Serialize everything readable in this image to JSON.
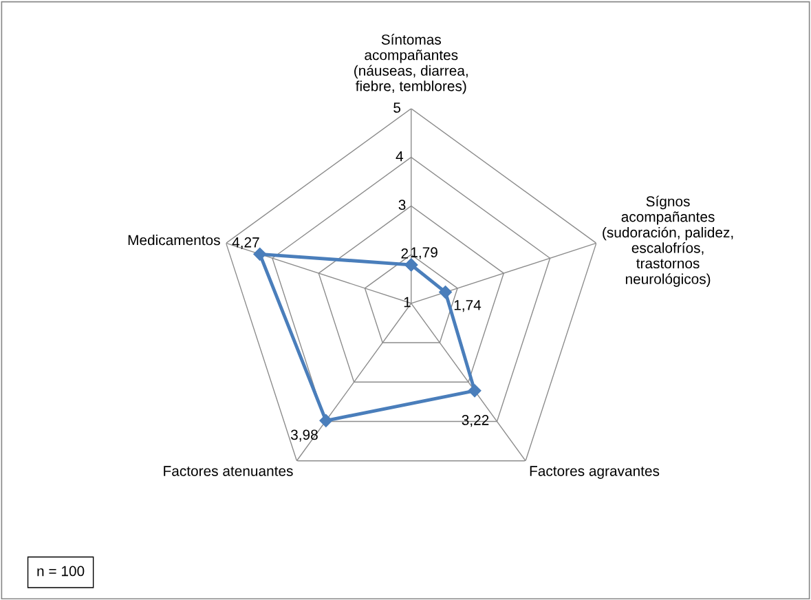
{
  "chart_data": {
    "type": "radar",
    "categories": [
      "Síntomas\nacompañantes\n(náuseas, diarrea,\nfiebre, temblores)",
      "Sígnos\nacompañantes\n(sudoración, palidez,\nescalofríos,\ntrastornos\nneurológicos)",
      "Factores agravantes",
      "Factores atenuantes",
      "Medicamentos"
    ],
    "series": [
      {
        "color": "#4a7ebb",
        "values": [
          1.79,
          1.74,
          3.22,
          3.98,
          4.27
        ],
        "value_labels": [
          "1,79",
          "1,74",
          "3,22",
          "3,98",
          "4,27"
        ]
      }
    ],
    "ylim": [
      1,
      5
    ],
    "yticks": [
      1,
      2,
      3,
      4,
      5
    ],
    "grid": true,
    "marker": "diamond",
    "line_style": "solid",
    "annotations": [
      "n = 100"
    ]
  }
}
